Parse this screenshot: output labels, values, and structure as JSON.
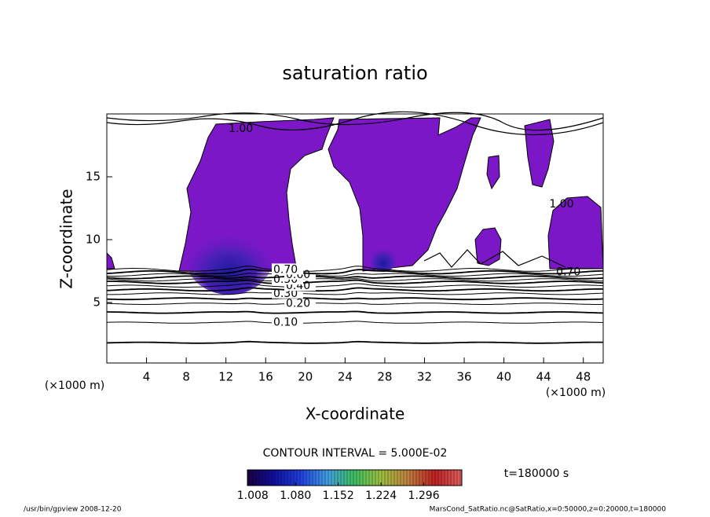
{
  "chart_data": {
    "type": "contour",
    "title": "saturation ratio",
    "xlabel": "X-coordinate",
    "ylabel": "Z-coordinate",
    "x_unit": "(×1000 m)",
    "xlim": [
      0,
      50
    ],
    "ylim": [
      0,
      20
    ],
    "xticks": [
      4,
      8,
      12,
      16,
      20,
      24,
      28,
      32,
      36,
      40,
      44,
      48
    ],
    "yticks": [
      5,
      10,
      15
    ],
    "fill_color": "#7b17c6",
    "contours": [
      {
        "level": 0.05,
        "z": 1.8
      },
      {
        "level": 0.1,
        "label": "0.10",
        "z": 3.4
      },
      {
        "level": 0.15,
        "z": 4.2
      },
      {
        "level": 0.2,
        "label": "0.20",
        "z": 4.9
      },
      {
        "level": 0.25,
        "z": 5.3
      },
      {
        "level": 0.3,
        "label": "0.30",
        "z": 5.7
      },
      {
        "level": 0.35,
        "z": 6.0
      },
      {
        "level": 0.4,
        "label": "0.40",
        "z": 6.3
      },
      {
        "level": 0.45,
        "z": 6.6
      },
      {
        "level": 0.5,
        "label": "0.50",
        "z": 6.8
      },
      {
        "level": 0.55,
        "z": 7.0
      },
      {
        "level": 0.6,
        "label": "0.60",
        "z": 7.2
      },
      {
        "level": 0.65,
        "z": 7.4
      },
      {
        "level": 0.7,
        "label": "0.70",
        "z": 7.6
      }
    ],
    "annotations": [
      {
        "text": "1.00",
        "x": 45.8,
        "z": 12.8
      },
      {
        "text": "0.70",
        "x": 46.5,
        "z": 7.4
      },
      {
        "text": "1.00",
        "x": 13.5,
        "z": 18.8
      }
    ],
    "contour_interval": "CONTOUR INTERVAL = 5.000E-02",
    "time_label": "t=180000 s",
    "colorbar": {
      "lim": [
        0.999,
        1.36
      ],
      "colors": [
        "#1a0040",
        "#1010a0",
        "#2040e0",
        "#40a0e0",
        "#40c060",
        "#a0c040",
        "#c08040",
        "#c02020",
        "#e06060"
      ],
      "ticks": [
        1.008,
        {
          "value": 1.08,
          "label": "1.080"
        },
        1.152,
        1.224,
        1.296
      ]
    },
    "footer_left": "/usr/bin/gpview  2008-12-20",
    "footer_right": "MarsCond_SatRatio.nc@SatRatio,x=0:50000,z=0:20000,t=180000"
  }
}
